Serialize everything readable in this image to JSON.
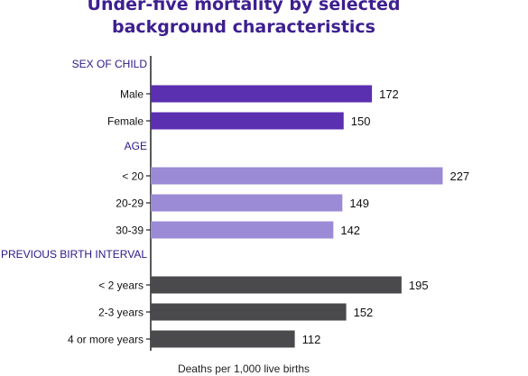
{
  "chart_data": {
    "type": "bar",
    "orientation": "horizontal",
    "title_lines": [
      "Under-five mortality by selected",
      "background characteristics"
    ],
    "xlabel": "Deaths per 1,000 live births",
    "ylabel": "",
    "xlim": [
      0,
      232
    ],
    "grid": false,
    "legend": "none",
    "groups": [
      {
        "label": "SEX OF CHILD",
        "color": "#5a2fb0",
        "categories": [
          "Male",
          "Female"
        ],
        "values": [
          172,
          150
        ]
      },
      {
        "label": "AGE",
        "color": "#9b8ad6",
        "categories": [
          "< 20",
          "20-29",
          "30-39"
        ],
        "values": [
          227,
          149,
          142
        ]
      },
      {
        "label": "PREVIOUS BIRTH INTERVAL",
        "color": "#4a4a4d",
        "categories": [
          "< 2 years",
          "2-3 years",
          "4 or more years"
        ],
        "values": [
          195,
          152,
          112
        ]
      }
    ]
  }
}
